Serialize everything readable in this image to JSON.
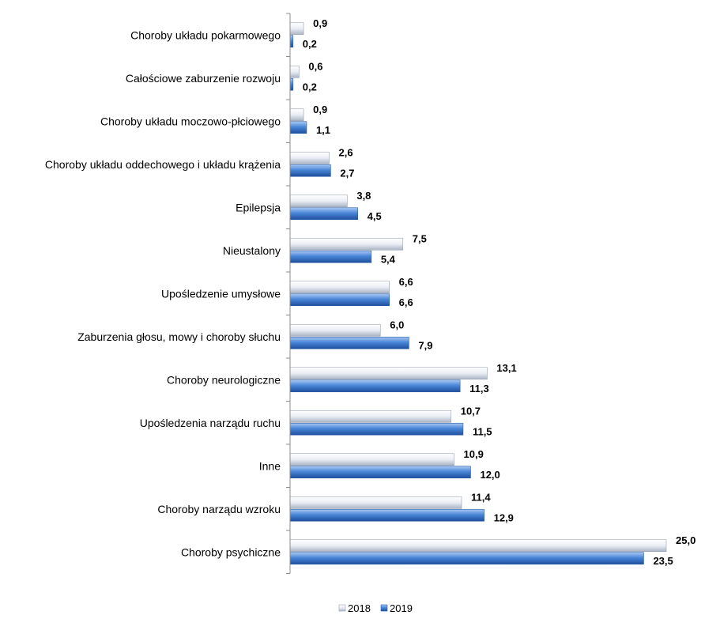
{
  "chart_data": {
    "type": "bar",
    "orientation": "horizontal",
    "categories": [
      "Choroby układu pokarmowego",
      "Całościowe zaburzenie rozwoju",
      "Choroby układu moczowo-płciowego",
      "Choroby układu oddechowego i układu krążenia",
      "Epilepsja",
      "Nieustalony",
      "Upośledzenie umysłowe",
      "Zaburzenia głosu, mowy i choroby słuchu",
      "Choroby neurologiczne",
      "Upośledzenia narządu ruchu",
      "Inne",
      "Choroby narządu wzroku",
      "Choroby psychiczne"
    ],
    "series": [
      {
        "name": "2018",
        "values": [
          0.9,
          0.6,
          0.9,
          2.6,
          3.8,
          7.5,
          6.6,
          6.0,
          13.1,
          10.7,
          10.9,
          11.4,
          25.0
        ],
        "labels": [
          "0,9",
          "0,6",
          "0,9",
          "2,6",
          "3,8",
          "7,5",
          "6,6",
          "6,0",
          "13,1",
          "10,7",
          "10,9",
          "11,4",
          "25,0"
        ],
        "color": "#e4e8f0"
      },
      {
        "name": "2019",
        "values": [
          0.2,
          0.2,
          1.1,
          2.7,
          4.5,
          5.4,
          6.6,
          7.9,
          11.3,
          11.5,
          12.0,
          12.9,
          23.5
        ],
        "labels": [
          "0,2",
          "0,2",
          "1,1",
          "2,7",
          "4,5",
          "5,4",
          "6,6",
          "7,9",
          "11,3",
          "11,5",
          "12,0",
          "12,9",
          "23,5"
        ],
        "color": "#4a86d8"
      }
    ],
    "xlim": [
      0,
      25
    ],
    "grid": false,
    "legend_position": "bottom-center"
  }
}
